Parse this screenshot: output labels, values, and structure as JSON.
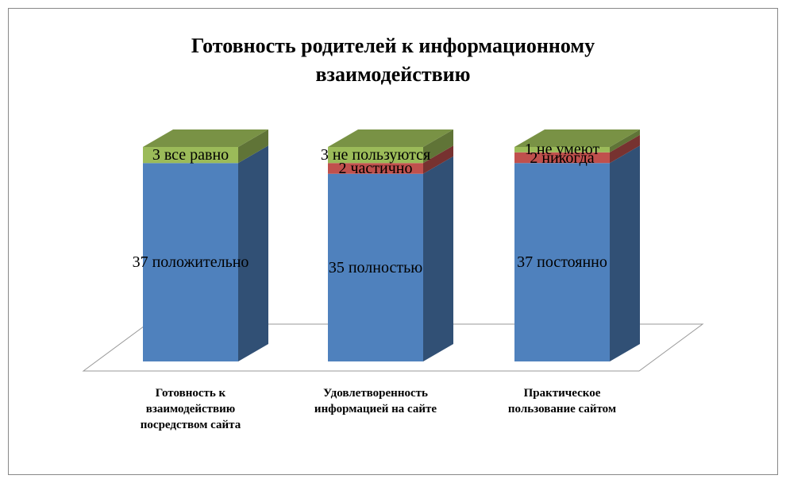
{
  "chart_data": {
    "type": "bar3d_stacked",
    "title": "Готовность родителей к информационному взаимодействию",
    "categories": [
      "Готовность к взаимодействию посредством сайта",
      "Удовлетворенность информацией на сайте",
      "Практическое пользование сайтом"
    ],
    "series": [
      {
        "color": "#4f81bd",
        "values": [
          37,
          35,
          37
        ],
        "value_labels": [
          "37 положительно",
          "35 полностью",
          "37 постоянно"
        ]
      },
      {
        "color": "#c0504d",
        "values": [
          0,
          2,
          2
        ],
        "value_labels": [
          null,
          "2 частично",
          "2 никогда"
        ]
      },
      {
        "color": "#9bbb59",
        "values": [
          3,
          3,
          1
        ],
        "value_labels": [
          "3 все равно",
          "3 не пользуются",
          "1 не умеют"
        ]
      }
    ]
  }
}
